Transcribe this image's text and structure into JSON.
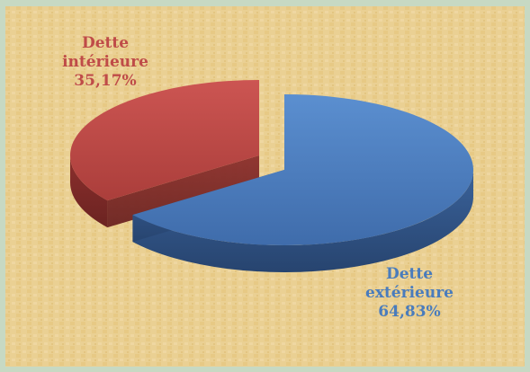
{
  "colors": {
    "background_outer": "#c7d9c3",
    "canvas": "#e9cf8c",
    "interieure": "#bf4b48",
    "exterieure": "#4a7cbc",
    "interieure_text": "#bf4b48",
    "exterieure_text": "#4a7cbc"
  },
  "chart_data": {
    "type": "pie",
    "style": "3d-exploded",
    "series": [
      {
        "label_line1": "Dette",
        "label_line2": "intérieure",
        "percent_label": "35,17%",
        "value": 35.17
      },
      {
        "label_line1": "Dette",
        "label_line2": "extérieure",
        "percent_label": "64,83%",
        "value": 64.83
      }
    ]
  }
}
